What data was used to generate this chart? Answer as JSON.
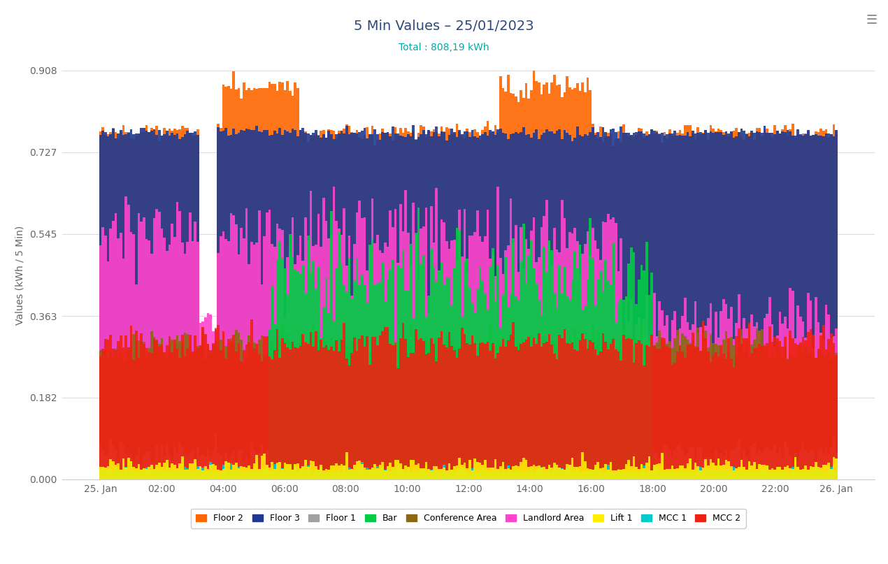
{
  "title": "5 Min Values – 25/01/2023",
  "subtitle": "Total : 808,19 kWh",
  "ylabel": "Values (kWh / 5 Min)",
  "ylim": [
    0,
    0.908
  ],
  "yticks": [
    0,
    0.182,
    0.363,
    0.545,
    0.727,
    0.908
  ],
  "xtick_labels": [
    "25. Jan",
    "02:00",
    "04:00",
    "06:00",
    "08:00",
    "10:00",
    "12:00",
    "14:00",
    "16:00",
    "18:00",
    "20:00",
    "22:00",
    "26. Jan"
  ],
  "n_intervals": 288,
  "series": [
    {
      "name": "Floor 2",
      "color": "#FF6600"
    },
    {
      "name": "Floor 3",
      "color": "#1F3A8F"
    },
    {
      "name": "Floor 1",
      "color": "#A0A0A0"
    },
    {
      "name": "Bar",
      "color": "#00CC44"
    },
    {
      "name": "Conference Area",
      "color": "#8B6914"
    },
    {
      "name": "Landlord Area",
      "color": "#FF44CC"
    },
    {
      "name": "Lift 1",
      "color": "#FFEE00"
    },
    {
      "name": "MCC 1",
      "color": "#00CCCC"
    },
    {
      "name": "MCC 2",
      "color": "#EE2211"
    }
  ],
  "background_color": "#ffffff",
  "title_color": "#2E4A7A",
  "subtitle_color": "#00AAAA",
  "axis_color": "#CCCCCC",
  "tick_color": "#666666",
  "grid_color": "#DDDDDD"
}
